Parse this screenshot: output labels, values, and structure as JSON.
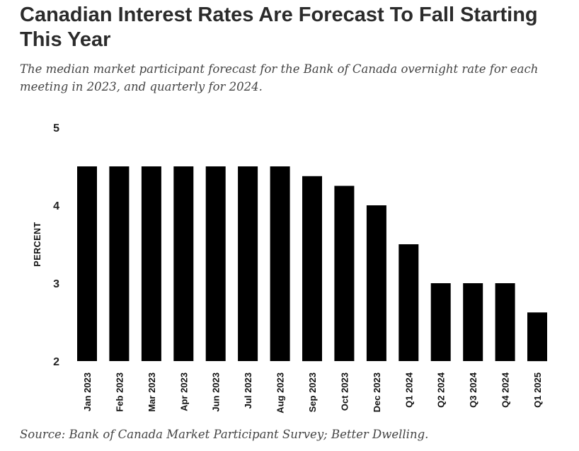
{
  "title": "Canadian Interest Rates Are Forecast To Fall Starting This Year",
  "subtitle": "The median market participant forecast for the Bank of Canada overnight rate for each meeting in 2023, and quarterly for 2024.",
  "source": "Source: Bank of Canada Market Participant Survey; Better Dwelling.",
  "colors": {
    "bar": "#000000",
    "text": "#2b2b2b"
  },
  "chart_data": {
    "type": "bar",
    "title": "Canadian Interest Rates Are Forecast To Fall Starting This Year",
    "subtitle": "The median market participant forecast for the Bank of Canada overnight rate for each meeting in 2023, and quarterly for 2024.",
    "xlabel": "",
    "ylabel": "PERCENT",
    "ylim": [
      2,
      5
    ],
    "yticks": [
      "2",
      "3",
      "4",
      "5"
    ],
    "grid": false,
    "legend": "none",
    "categories": [
      "Jan 2023",
      "Feb 2023",
      "Mar 2023",
      "Apr 2023",
      "Jun 2023",
      "Jul 2023",
      "Aug 2023",
      "Sep 2023",
      "Oct 2023",
      "Dec 2023",
      "Q1 2024",
      "Q2 2024",
      "Q3 2024",
      "Q4 2024",
      "Q1 2025"
    ],
    "values": [
      4.5,
      4.5,
      4.5,
      4.5,
      4.5,
      4.5,
      4.5,
      4.375,
      4.25,
      4.0,
      3.5,
      3.0,
      3.0,
      3.0,
      2.625
    ]
  }
}
